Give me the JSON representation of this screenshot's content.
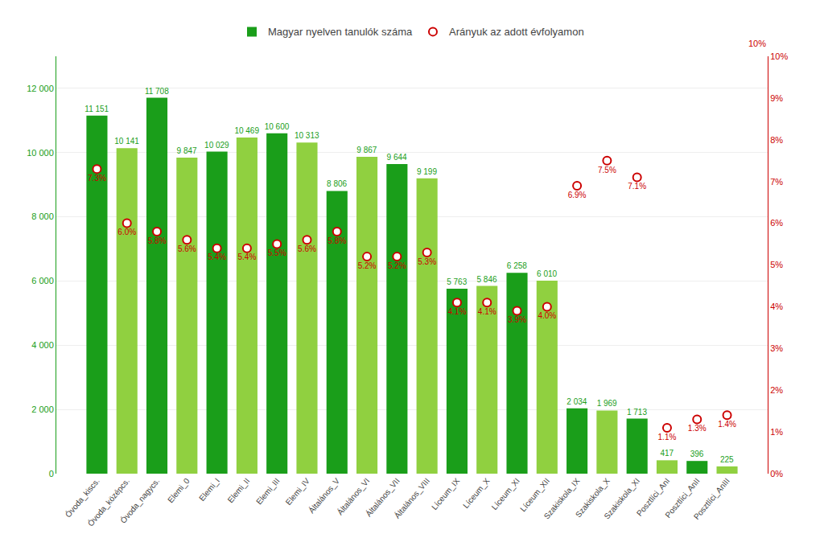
{
  "chart_data": {
    "type": "bar",
    "categories": [
      "Óvoda_kiscs.",
      "Óvoda_középcs.",
      "Óvoda_nagycs.",
      "Elemi_0",
      "Elemi_I",
      "Elemi_II",
      "Elemi_III",
      "Elemi_IV",
      "Általános_V",
      "Általános_VI",
      "Általános_VII",
      "Általános_VIII",
      "Líceum_IX",
      "Líceum_X",
      "Líceum_XI",
      "Líceum_XII",
      "Szakiskola_IX",
      "Szakiskola_X",
      "Szakiskola_XI",
      "Posztlíci_AnI",
      "Posztlíci_AnII",
      "Posztlíci_AnIII"
    ],
    "series": [
      {
        "name": "Magyar nyelven tanulók száma",
        "type": "bar",
        "colors": [
          "#1a9e1a",
          "#90d040",
          "#1a9e1a",
          "#90d040",
          "#1a9e1a",
          "#90d040",
          "#1a9e1a",
          "#90d040",
          "#1a9e1a",
          "#90d040",
          "#1a9e1a",
          "#90d040",
          "#1a9e1a",
          "#90d040",
          "#1a9e1a",
          "#90d040",
          "#1a9e1a",
          "#90d040",
          "#1a9e1a",
          "#90d040",
          "#1a9e1a",
          "#90d040"
        ],
        "values": [
          11151,
          10141,
          11708,
          9847,
          10029,
          10469,
          10600,
          10313,
          8806,
          9867,
          9644,
          9199,
          5763,
          5846,
          6258,
          6010,
          2034,
          1969,
          1713,
          417,
          396,
          225
        ],
        "value_labels": [
          "11 151",
          "10 141",
          "11 708",
          "9 847",
          "10 029",
          "10 469",
          "10 600",
          "10 313",
          "8 806",
          "9 867",
          "9 644",
          "9 199",
          "5 763",
          "5 846",
          "6 258",
          "6 010",
          "2 034",
          "1 969",
          "1 713",
          "417",
          "396",
          "225"
        ]
      },
      {
        "name": "Arányuk az adott évfolyamon",
        "type": "scatter",
        "axis": "y2",
        "color": "#cc0000",
        "marker": "circle",
        "values": [
          0.073,
          0.06,
          0.058,
          0.056,
          0.054,
          0.054,
          0.055,
          0.056,
          0.058,
          0.052,
          0.052,
          0.053,
          0.041,
          0.041,
          0.039,
          0.04,
          0.069,
          0.075,
          0.071,
          0.011,
          0.013,
          0.014
        ],
        "value_labels": [
          "7.3%",
          "6.0%",
          "5.8%",
          "5.6%",
          "5.4%",
          "5.4%",
          "5.5%",
          "5.6%",
          "5.8%",
          "5.2%",
          "5.2%",
          "5.3%",
          "4.1%",
          "4.1%",
          "3.9%",
          "4.0%",
          "6.9%",
          "7.5%",
          "7.1%",
          "1.1%",
          "1.3%",
          "1.4%"
        ]
      }
    ],
    "ylim": [
      0,
      13000
    ],
    "yticks": [
      0,
      {
        "value": 2000,
        "label": "2 000"
      },
      {
        "value": 4000,
        "label": "4 000"
      },
      {
        "value": 6000,
        "label": "6 000"
      },
      {
        "value": 8000,
        "label": "8 000"
      },
      {
        "value": 10000,
        "label": "10 000"
      },
      {
        "value": 12000,
        "label": "12 000"
      }
    ],
    "y2lim": [
      0,
      0.1
    ],
    "y2ticks": [
      {
        "value": 0,
        "label": "0%"
      },
      {
        "value": 0.01,
        "label": "1%"
      },
      {
        "value": 0.02,
        "label": "2%"
      },
      {
        "value": 0.03,
        "label": "3%"
      },
      {
        "value": 0.04,
        "label": "4%"
      },
      {
        "value": 0.05,
        "label": "5%"
      },
      {
        "value": 0.06,
        "label": "6%"
      },
      {
        "value": 0.07,
        "label": "7%"
      },
      {
        "value": 0.08,
        "label": "8%"
      },
      {
        "value": 0.09,
        "label": "9%"
      },
      {
        "value": 0.1,
        "label": "10%"
      }
    ],
    "annotations": [
      "10%"
    ],
    "grid": true,
    "legend": "top"
  }
}
